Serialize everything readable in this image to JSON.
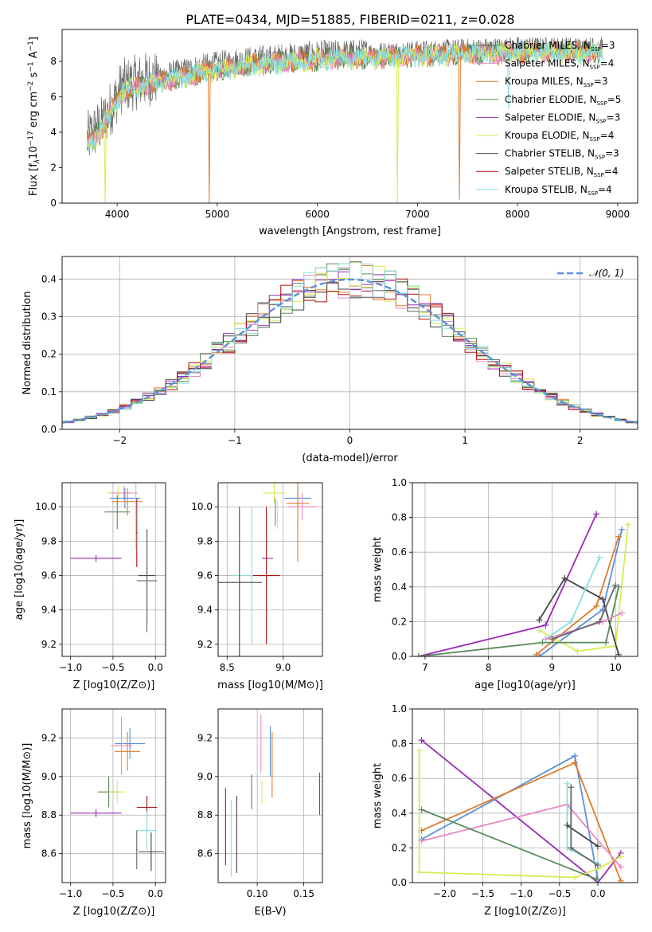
{
  "figure_title": "PLATE=0434, MJD=51885, FIBERID=0211, z=0.028",
  "colors": {
    "chabrier_miles": "#666666",
    "salpeter_miles": "#e889c5",
    "kroupa_miles": "#e07b2a",
    "chabrier_elodie": "#5a8a5a",
    "salpeter_elodie": "#9a2ab8",
    "kroupa_elodie": "#d6ec52",
    "chabrier_stelib": "#444444",
    "salpeter_stelib": "#b01212",
    "kroupa_stelib": "#88dede",
    "normal": "#5b8fd9",
    "extra_blue": "#5b8fd9"
  },
  "chart_data": [
    {
      "id": "spectrum",
      "type": "line",
      "title": "PLATE=0434, MJD=51885, FIBERID=0211, z=0.028",
      "xlabel": "wavelength [Angstrom, rest frame]",
      "ylabel": "Flux [f",
      "xlim": [
        3450,
        9200
      ],
      "ylim": [
        0,
        9.8
      ],
      "xticks": [
        4000,
        5000,
        6000,
        7000,
        8000,
        9000
      ],
      "yticks": [
        0,
        2,
        4,
        6,
        8
      ],
      "grid": false,
      "legend_position": "upper-right",
      "legend": [
        {
          "label": "Chabrier MILES, N",
          "sub": "SSP",
          "suffix": "=3",
          "color_key": "chabrier_miles"
        },
        {
          "label": "Salpeter MILES, N",
          "sub": "SSP",
          "suffix": "=4",
          "color_key": "salpeter_miles"
        },
        {
          "label": "Kroupa MILES, N",
          "sub": "SSP",
          "suffix": "=3",
          "color_key": "kroupa_miles"
        },
        {
          "label": "Chabrier ELODIE, N",
          "sub": "SSP",
          "suffix": "=5",
          "color_key": "chabrier_elodie"
        },
        {
          "label": "Salpeter ELODIE, N",
          "sub": "SSP",
          "suffix": "=3",
          "color_key": "salpeter_elodie"
        },
        {
          "label": "Kroupa ELODIE, N",
          "sub": "SSP",
          "suffix": "=4",
          "color_key": "kroupa_elodie"
        },
        {
          "label": "Chabrier STELIB, N",
          "sub": "SSP",
          "suffix": "=3",
          "color_key": "chabrier_stelib"
        },
        {
          "label": "Salpeter STELIB, N",
          "sub": "SSP",
          "suffix": "=4",
          "color_key": "salpeter_stelib"
        },
        {
          "label": "Kroupa STELIB, N",
          "sub": "SSP",
          "suffix": "=4",
          "color_key": "kroupa_stelib"
        }
      ],
      "continuum_knots": {
        "x": [
          3700,
          3850,
          3950,
          4050,
          4300,
          4500,
          4800,
          5200,
          5600,
          6000,
          6500,
          7000,
          7500,
          8000,
          8500,
          8800
        ],
        "y": [
          3.6,
          4.5,
          5.5,
          6.6,
          7.0,
          7.2,
          7.6,
          8.0,
          8.2,
          8.4,
          8.5,
          8.6,
          8.7,
          8.8,
          8.8,
          8.8
        ]
      },
      "dips": [
        {
          "x": 4920,
          "y": 0,
          "color_key": "kroupa_miles"
        },
        {
          "x": 6800,
          "y": 0,
          "color_key": "kroupa_elodie"
        },
        {
          "x": 7420,
          "y": 0.2,
          "color_key": "kroupa_miles"
        },
        {
          "x": 7910,
          "y": 5.3,
          "color_key": "kroupa_stelib"
        },
        {
          "x": 3880,
          "y": 0,
          "color_key": "kroupa_elodie"
        }
      ]
    },
    {
      "id": "residuals",
      "type": "histogram",
      "xlabel": "(data-model)/error",
      "ylabel": "Normed distribution",
      "xlim": [
        -2.5,
        2.5
      ],
      "ylim": [
        0,
        0.46
      ],
      "xticks": [
        -2,
        -1,
        0,
        1,
        2
      ],
      "yticks": [
        0.0,
        0.1,
        0.2,
        0.3,
        0.4
      ],
      "grid": true,
      "legend_position": "upper-right",
      "legend_label": "N(0,1)",
      "bin_width": 0.1,
      "curve": "standard normal pdf"
    },
    {
      "id": "age_vs_Z",
      "type": "errorbar",
      "xlabel": "Z [log10(Z/Z⊙)]",
      "ylabel": "age [log10(age/yr)]",
      "xlim": [
        -1.1,
        0.12
      ],
      "ylim": [
        9.13,
        10.14
      ],
      "xticks": [
        -1.0,
        -0.5,
        0.0
      ],
      "yticks": [
        9.2,
        9.4,
        9.6,
        9.8,
        10.0
      ],
      "grid": true,
      "points": [
        {
          "color_key": "kroupa_elodie",
          "x": -0.44,
          "xerr": 0.14,
          "y": 10.08,
          "yerr": 0.04
        },
        {
          "color_key": "salpeter_miles",
          "x": -0.37,
          "xerr": 0.16,
          "y": 10.08,
          "yerr": 0.04
        },
        {
          "color_key": "normal",
          "x": -0.36,
          "xerr": 0.18,
          "y": 10.05,
          "yerr": 0.06
        },
        {
          "color_key": "kroupa_miles",
          "x": -0.33,
          "xerr": 0.18,
          "y": 10.03,
          "yerr": 0.08
        },
        {
          "color_key": "chabrier_elodie",
          "x": -0.45,
          "xerr": 0.15,
          "y": 9.97,
          "yerr": 0.1
        },
        {
          "color_key": "salpeter_elodie",
          "x": -0.7,
          "xerr": 0.3,
          "y": 9.7,
          "yerr": 0.02
        },
        {
          "color_key": "chabrier_stelib",
          "x": -0.1,
          "xerr": 0.1,
          "y": 9.6,
          "yerr": 0.26
        },
        {
          "color_key": "chabrier_miles",
          "x": -0.1,
          "xerr": 0.12,
          "y": 9.57,
          "yerr": 0.3
        },
        {
          "color_key": "salpeter_stelib",
          "x": -0.22,
          "xerr": 0.01,
          "y": 9.85,
          "yerr": 0.2
        },
        {
          "color_key": "kroupa_stelib",
          "x": -0.23,
          "xerr": 0.01,
          "y": 9.95,
          "yerr": 0.2
        }
      ]
    },
    {
      "id": "age_vs_mass",
      "type": "errorbar",
      "xlabel": "mass [log10(M/M⊙)]",
      "ylabel": "",
      "xlim": [
        8.42,
        9.35
      ],
      "ylim": [
        9.13,
        10.14
      ],
      "xticks": [
        8.5,
        9.0
      ],
      "yticks": [
        9.2,
        9.4,
        9.6,
        9.8,
        10.0
      ],
      "grid": true,
      "points": [
        {
          "color_key": "kroupa_elodie",
          "x": 8.92,
          "xerr": 0.1,
          "y": 10.08,
          "yerr": 0.06
        },
        {
          "color_key": "normal",
          "x": 9.13,
          "xerr": 0.12,
          "y": 10.05,
          "yerr": 0.07
        },
        {
          "color_key": "kroupa_miles",
          "x": 9.13,
          "xerr": 0.1,
          "y": 10.02,
          "yerr": 0.34
        },
        {
          "color_key": "salpeter_miles",
          "x": 9.17,
          "xerr": 0.13,
          "y": 10.0,
          "yerr": 0.08
        },
        {
          "color_key": "kroupa_elodie",
          "x": 8.95,
          "xerr": 0.0,
          "y": 9.95,
          "yerr": 0.08
        },
        {
          "color_key": "salpeter_elodie",
          "x": 8.86,
          "xerr": 0.05,
          "y": 9.7,
          "yerr": 0.0
        },
        {
          "color_key": "kroupa_stelib",
          "x": 8.72,
          "xerr": 0.18,
          "y": 9.6,
          "yerr": 0.4
        },
        {
          "color_key": "salpeter_stelib",
          "x": 8.85,
          "xerr": 0.12,
          "y": 9.6,
          "yerr": 0.4
        },
        {
          "color_key": "chabrier_stelib",
          "x": 8.61,
          "xerr": 0.2,
          "y": 9.56,
          "yerr": 0.44
        },
        {
          "color_key": "chabrier_elodie",
          "x": 8.93,
          "xerr": 0.0,
          "y": 9.97,
          "yerr": 0.08
        }
      ]
    },
    {
      "id": "weight_vs_age",
      "type": "line",
      "xlabel": "age [log10(age/yr)]",
      "ylabel": "mass weight",
      "xlim": [
        6.8,
        10.35
      ],
      "ylim": [
        0.0,
        1.0
      ],
      "xticks": [
        7,
        8,
        9,
        10
      ],
      "yticks": [
        0.0,
        0.2,
        0.4,
        0.6,
        0.8,
        1.0
      ],
      "grid": true,
      "series": [
        {
          "color_key": "salpeter_elodie",
          "x": [
            6.9,
            8.9,
            9.7
          ],
          "y": [
            0.0,
            0.18,
            0.82
          ]
        },
        {
          "color_key": "normal",
          "x": [
            8.8,
            9.8,
            10.1
          ],
          "y": [
            0.0,
            0.27,
            0.73
          ]
        },
        {
          "color_key": "kroupa_miles",
          "x": [
            8.75,
            9.7,
            10.05
          ],
          "y": [
            0.01,
            0.29,
            0.69
          ]
        },
        {
          "color_key": "kroupa_elodie",
          "x": [
            8.8,
            9.4,
            10.0,
            10.2
          ],
          "y": [
            0.15,
            0.03,
            0.06,
            0.76
          ]
        },
        {
          "color_key": "chabrier_stelib",
          "x": [
            8.8,
            9.2,
            9.8,
            10.05
          ],
          "y": [
            0.21,
            0.45,
            0.33,
            0.01
          ]
        },
        {
          "color_key": "chabrier_elodie",
          "x": [
            6.9,
            8.85,
            9.85,
            10.05
          ],
          "y": [
            0.0,
            0.08,
            0.08,
            0.4
          ]
        },
        {
          "color_key": "kroupa_stelib",
          "x": [
            8.9,
            9.3,
            9.75
          ],
          "y": [
            0.1,
            0.2,
            0.57
          ]
        },
        {
          "color_key": "salpeter_miles",
          "x": [
            8.9,
            9.8,
            10.1
          ],
          "y": [
            0.1,
            0.2,
            0.25
          ]
        },
        {
          "color_key": "chabrier_miles",
          "x": [
            9.0,
            9.75,
            10.0
          ],
          "y": [
            0.1,
            0.2,
            0.41
          ]
        }
      ]
    },
    {
      "id": "mass_vs_Z",
      "type": "errorbar",
      "xlabel": "Z [log10(Z/Z⊙)]",
      "ylabel": "mass [log10(M/M⊙)]",
      "xlim": [
        -1.1,
        0.12
      ],
      "ylim": [
        8.45,
        9.35
      ],
      "xticks": [
        -1.0,
        -0.5,
        0.0
      ],
      "yticks": [
        8.6,
        8.8,
        9.0,
        9.2
      ],
      "grid": true,
      "points": [
        {
          "color_key": "normal",
          "x": -0.3,
          "xerr": 0.18,
          "y": 9.17,
          "yerr": 0.08
        },
        {
          "color_key": "salpeter_miles",
          "x": -0.4,
          "xerr": 0.13,
          "y": 9.16,
          "yerr": 0.15
        },
        {
          "color_key": "kroupa_miles",
          "x": -0.33,
          "xerr": 0.15,
          "y": 9.13,
          "yerr": 0.1
        },
        {
          "color_key": "chabrier_elodie",
          "x": -0.55,
          "xerr": 0.13,
          "y": 8.92,
          "yerr": 0.08
        },
        {
          "color_key": "kroupa_elodie",
          "x": -0.45,
          "xerr": 0.1,
          "y": 8.92,
          "yerr": 0.06
        },
        {
          "color_key": "salpeter_elodie",
          "x": -0.7,
          "xerr": 0.3,
          "y": 8.81,
          "yerr": 0.02
        },
        {
          "color_key": "salpeter_stelib",
          "x": -0.1,
          "xerr": 0.12,
          "y": 8.84,
          "yerr": 0.06
        },
        {
          "color_key": "kroupa_stelib",
          "x": -0.1,
          "xerr": 0.12,
          "y": 8.72,
          "yerr": 0.1
        },
        {
          "color_key": "chabrier_stelib",
          "x": -0.05,
          "xerr": 0.15,
          "y": 8.61,
          "yerr": 0.1
        },
        {
          "color_key": "chabrier_miles",
          "x": -0.22,
          "xerr": 0.01,
          "y": 8.62,
          "yerr": 0.1
        }
      ]
    },
    {
      "id": "mass_vs_ebv",
      "type": "errorbar",
      "xlabel": "E(B-V)",
      "ylabel": "",
      "xlim": [
        0.058,
        0.17
      ],
      "ylim": [
        8.45,
        9.35
      ],
      "xticks": [
        0.1,
        0.15
      ],
      "yticks": [
        8.6,
        8.8,
        9.0,
        9.2
      ],
      "grid": true,
      "points": [
        {
          "color_key": "salpeter_stelib",
          "x": 0.066,
          "xerr": 0.0,
          "y": 8.74,
          "yerr": 0.2
        },
        {
          "color_key": "kroupa_stelib",
          "x": 0.072,
          "xerr": 0.0,
          "y": 8.68,
          "yerr": 0.2
        },
        {
          "color_key": "chabrier_stelib",
          "x": 0.078,
          "xerr": 0.0,
          "y": 8.7,
          "yerr": 0.2
        },
        {
          "color_key": "chabrier_elodie",
          "x": 0.094,
          "xerr": 0.0,
          "y": 8.92,
          "yerr": 0.09
        },
        {
          "color_key": "salpeter_miles",
          "x": 0.104,
          "xerr": 0.0,
          "y": 9.17,
          "yerr": 0.15
        },
        {
          "color_key": "kroupa_elodie",
          "x": 0.105,
          "xerr": 0.0,
          "y": 8.92,
          "yerr": 0.06
        },
        {
          "color_key": "normal",
          "x": 0.114,
          "xerr": 0.0,
          "y": 9.13,
          "yerr": 0.13
        },
        {
          "color_key": "kroupa_miles",
          "x": 0.116,
          "xerr": 0.0,
          "y": 9.06,
          "yerr": 0.17
        },
        {
          "color_key": "salpeter_elodie",
          "x": 0.167,
          "xerr": 0.0,
          "y": 8.91,
          "yerr": 0.11
        }
      ]
    },
    {
      "id": "weight_vs_Z",
      "type": "line",
      "xlabel": "Z [log10(Z/Z⊙)]",
      "ylabel": "mass weight",
      "xlim": [
        -2.42,
        0.52
      ],
      "ylim": [
        0.0,
        1.0
      ],
      "xticks": [
        -2.0,
        -1.5,
        -1.0,
        -0.5,
        0.0
      ],
      "yticks": [
        0.0,
        0.2,
        0.4,
        0.6,
        0.8,
        1.0
      ],
      "grid": true,
      "series": [
        {
          "color_key": "salpeter_elodie",
          "x": [
            -2.3,
            0.0,
            0.3
          ],
          "y": [
            0.82,
            0.0,
            0.17
          ]
        },
        {
          "color_key": "normal",
          "x": [
            -2.3,
            -0.3,
            0.0
          ],
          "y": [
            0.25,
            0.73,
            0.02
          ]
        },
        {
          "color_key": "kroupa_miles",
          "x": [
            -2.3,
            -0.3,
            0.3
          ],
          "y": [
            0.3,
            0.69,
            0.01
          ]
        },
        {
          "color_key": "kroupa_elodie",
          "x": [
            -2.33,
            -2.33,
            -0.3,
            0.0,
            0.3
          ],
          "y": [
            0.76,
            0.06,
            0.03,
            0.08,
            0.15
          ]
        },
        {
          "color_key": "salpeter_miles",
          "x": [
            -2.3,
            -0.4,
            0.3
          ],
          "y": [
            0.24,
            0.45,
            0.09
          ]
        },
        {
          "color_key": "chabrier_elodie",
          "x": [
            -2.3,
            -0.02
          ],
          "y": [
            0.42,
            0.02
          ]
        },
        {
          "color_key": "kroupa_stelib",
          "x": [
            -0.4,
            -0.4,
            0.0
          ],
          "y": [
            0.57,
            0.2,
            0.11
          ]
        },
        {
          "color_key": "chabrier_stelib",
          "x": [
            -0.4,
            0.0
          ],
          "y": [
            0.33,
            0.21
          ]
        },
        {
          "color_key": "chabrier_miles",
          "x": [
            -0.35,
            -0.35,
            0.0
          ],
          "y": [
            0.55,
            0.2,
            0.1
          ]
        }
      ]
    }
  ]
}
